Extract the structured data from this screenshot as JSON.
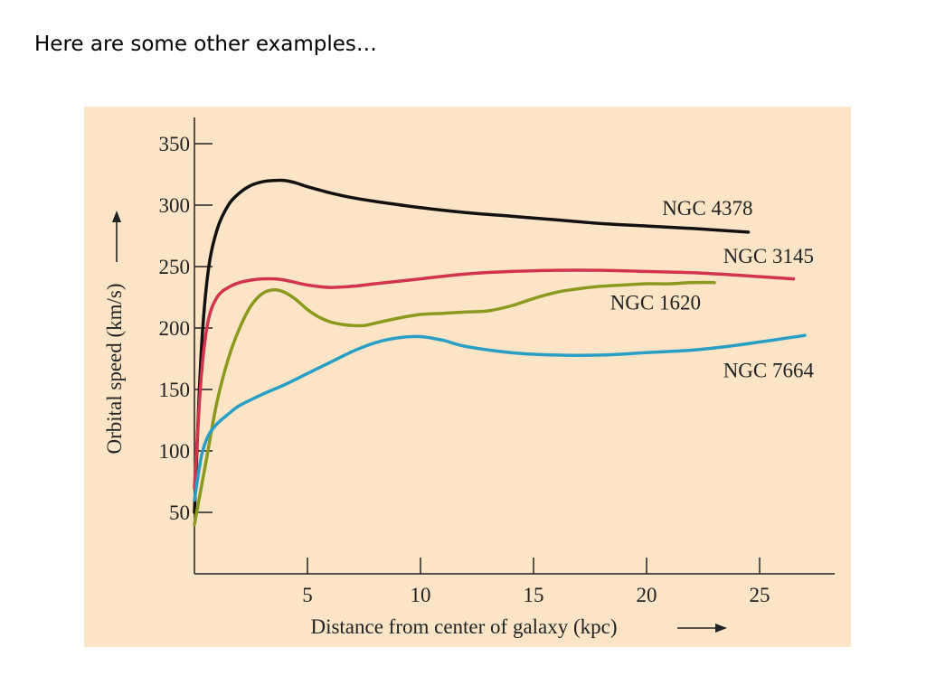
{
  "slide": {
    "title": "Here are some other examples…"
  },
  "colors": {
    "panel_bg": "#fbe5c6",
    "axis": "#222222"
  },
  "chart_data": {
    "type": "line",
    "title": "",
    "xlabel": "Distance from center of  galaxy (kpc)",
    "ylabel": "Orbital speed (km/s)",
    "xlim": [
      0,
      28.5
    ],
    "ylim": [
      0,
      360
    ],
    "xticks": [
      5,
      10,
      15,
      20,
      25
    ],
    "yticks": [
      50,
      100,
      150,
      200,
      250,
      300,
      350
    ],
    "grid": false,
    "legend": "none",
    "series": [
      {
        "name": "NGC 4378",
        "color": "#111111",
        "x": [
          0,
          0.3,
          0.6,
          1,
          1.5,
          2,
          2.5,
          3,
          3.5,
          4,
          4.5,
          5,
          6,
          7,
          8,
          10,
          12,
          14,
          16,
          18,
          20,
          22,
          24.5
        ],
        "y": [
          50,
          180,
          245,
          280,
          300,
          310,
          316,
          319,
          320,
          320,
          318,
          315,
          310,
          306,
          303,
          298,
          294,
          291,
          288,
          285,
          283,
          281,
          278
        ]
      },
      {
        "name": "NGC 3145",
        "color": "#d2344d",
        "x": [
          0,
          0.3,
          0.6,
          1,
          1.5,
          2,
          2.5,
          3,
          3.5,
          4,
          5,
          6,
          7,
          8,
          10,
          12,
          14,
          16,
          18,
          20,
          22,
          24,
          26.5
        ],
        "y": [
          70,
          160,
          205,
          225,
          233,
          237,
          239,
          240,
          240,
          239,
          235,
          233,
          234,
          236,
          240,
          244,
          246,
          247,
          247,
          246,
          245,
          243,
          240
        ]
      },
      {
        "name": "NGC 1620",
        "color": "#8a9a1e",
        "x": [
          0,
          0.5,
          1,
          1.5,
          2,
          2.5,
          3,
          3.5,
          4,
          4.5,
          5,
          5.5,
          6,
          6.5,
          7,
          7.5,
          8,
          9,
          10,
          11,
          12,
          13,
          14,
          15,
          16,
          17,
          18,
          19,
          20,
          21,
          22,
          23
        ],
        "y": [
          40,
          90,
          140,
          175,
          200,
          218,
          228,
          231,
          229,
          223,
          215,
          209,
          205,
          203,
          202,
          202,
          204,
          208,
          211,
          212,
          213,
          214,
          218,
          224,
          229,
          232,
          234,
          235,
          236,
          236,
          237,
          237
        ]
      },
      {
        "name": "NGC 7664",
        "color": "#2a9fc6",
        "x": [
          0,
          0.3,
          0.6,
          1,
          1.5,
          2,
          3,
          4,
          5,
          6,
          7,
          8,
          9,
          10,
          11,
          12,
          14,
          16,
          18,
          20,
          22,
          24,
          27
        ],
        "y": [
          60,
          95,
          112,
          122,
          130,
          137,
          146,
          154,
          163,
          172,
          181,
          188,
          192,
          193,
          190,
          185,
          180,
          178,
          178,
          180,
          182,
          186,
          194
        ]
      }
    ],
    "labels": [
      {
        "text": "NGC 4378",
        "x": 24.7,
        "y": 292
      },
      {
        "text": "NGC 3145",
        "x": 27.4,
        "y": 253
      },
      {
        "text": "NGC 1620",
        "x": 22.4,
        "y": 215
      },
      {
        "text": "NGC 7664",
        "x": 27.4,
        "y": 160
      }
    ]
  }
}
